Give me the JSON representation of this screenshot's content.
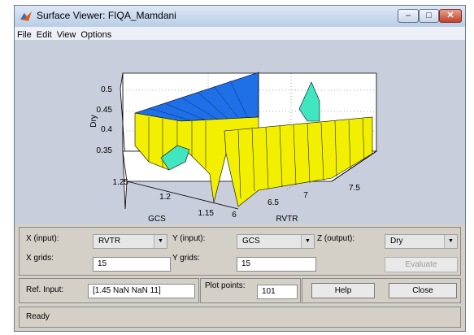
{
  "window": {
    "title": "Surface Viewer: FIQA_Mamdani"
  },
  "menu": [
    "File",
    "Edit",
    "View",
    "Options"
  ],
  "plot": {
    "z_label": "Dry",
    "z_ticks": [
      "0.5",
      "0.45",
      "0.4",
      "0.35"
    ],
    "y_label": "GCS",
    "y_ticks": [
      "1.25",
      "1.2",
      "1.15"
    ],
    "x_label": "RVTR",
    "x_ticks": [
      "6",
      "6.5",
      "7",
      "7.5"
    ]
  },
  "controls": {
    "x_input_label": "X (input):",
    "x_input_value": "RVTR",
    "y_input_label": "Y (input):",
    "y_input_value": "GCS",
    "z_output_label": "Z (output):",
    "z_output_value": "Dry",
    "x_grids_label": "X grids:",
    "x_grids_value": "15",
    "y_grids_label": "Y grids:",
    "y_grids_value": "15",
    "evaluate_label": "Evaluate",
    "ref_input_label": "Ref. Input:",
    "ref_input_value": "[1.45 NaN NaN 11]",
    "plot_points_label": "Plot points:",
    "plot_points_value": "101",
    "help_label": "Help",
    "close_label": "Close",
    "status": "Ready"
  }
}
